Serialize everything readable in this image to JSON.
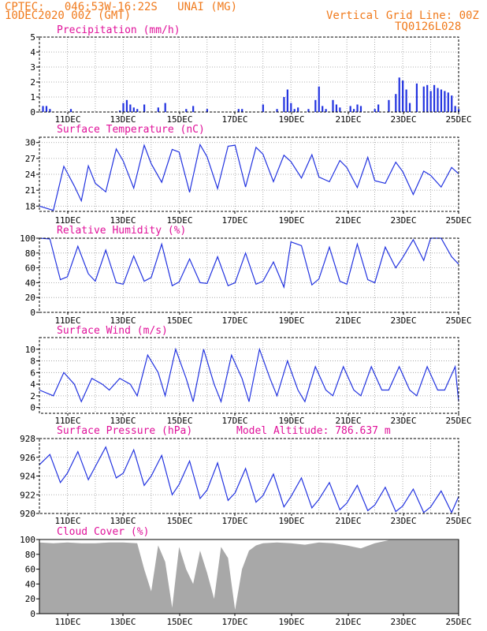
{
  "header": {
    "station_line": "CPTEC:   046:53W-16:22S   UNAI (MG)",
    "date_line": "10DEC2020 00Z (GMT)",
    "grid_note": "Vertical Grid Line: 00Z",
    "model_code": "TQ0126L028"
  },
  "colors": {
    "header": "#f07a1c",
    "title": "#e0119a",
    "series": "#2233e0",
    "cloud": "#a8a8a8",
    "grid": "#999999",
    "axis": "#000000"
  },
  "x_axis": {
    "start": "10DEC2020 00Z",
    "end": "25DEC2020 00Z",
    "tick_labels": [
      "11DEC",
      "13DEC",
      "15DEC",
      "17DEC",
      "19DEC",
      "21DEC",
      "23DEC",
      "25DEC"
    ]
  },
  "chart_data": [
    {
      "id": "precipitation",
      "type": "bar",
      "title": "Precipitation (mm/h)",
      "ylim": [
        0,
        5
      ],
      "yticks": [
        0,
        1,
        2,
        3,
        4,
        5
      ],
      "grid": true,
      "x": [
        "10DEC 03Z",
        "10DEC 06Z",
        "10DEC 09Z",
        "11DEC 03Z",
        "12DEC 21Z",
        "13DEC 00Z",
        "13DEC 03Z",
        "13DEC 06Z",
        "13DEC 09Z",
        "13DEC 12Z",
        "13DEC 18Z",
        "14DEC 06Z",
        "14DEC 12Z",
        "15DEC 06Z",
        "15DEC 12Z",
        "16DEC 00Z",
        "17DEC 03Z",
        "17DEC 06Z",
        "18DEC 00Z",
        "18DEC 12Z",
        "18DEC 18Z",
        "18DEC 21Z",
        "19DEC 00Z",
        "19DEC 03Z",
        "19DEC 06Z",
        "19DEC 15Z",
        "19DEC 21Z",
        "20DEC 00Z",
        "20DEC 03Z",
        "20DEC 06Z",
        "20DEC 12Z",
        "20DEC 15Z",
        "20DEC 18Z",
        "21DEC 03Z",
        "21DEC 06Z",
        "21DEC 09Z",
        "21DEC 12Z",
        "22DEC 00Z",
        "22DEC 03Z",
        "22DEC 12Z",
        "22DEC 18Z",
        "22DEC 21Z",
        "23DEC 00Z",
        "23DEC 03Z",
        "23DEC 06Z",
        "23DEC 12Z",
        "23DEC 18Z",
        "23DEC 21Z",
        "24DEC 00Z",
        "24DEC 03Z",
        "24DEC 06Z",
        "24DEC 09Z",
        "24DEC 12Z",
        "24DEC 15Z",
        "24DEC 18Z",
        "24DEC 21Z",
        "25DEC 00Z"
      ],
      "values": [
        0.4,
        0.4,
        0.2,
        0.2,
        0.1,
        0.6,
        0.8,
        0.5,
        0.3,
        0.2,
        0.5,
        0.3,
        0.6,
        0.2,
        0.4,
        0.2,
        0.2,
        0.2,
        0.5,
        0.2,
        1.0,
        1.5,
        0.6,
        0.2,
        0.3,
        0.2,
        0.8,
        1.7,
        0.4,
        0.2,
        0.8,
        0.5,
        0.3,
        0.4,
        0.2,
        0.5,
        0.4,
        0.2,
        0.5,
        0.8,
        1.2,
        2.3,
        2.1,
        1.5,
        0.6,
        1.9,
        1.7,
        1.8,
        1.4,
        1.8,
        1.6,
        1.5,
        1.4,
        1.3,
        1.1,
        0.4,
        0.2
      ]
    },
    {
      "id": "temperature",
      "type": "line",
      "title": "Surface Temperature (nC)",
      "ylim": [
        17,
        31
      ],
      "yticks": [
        18,
        21,
        24,
        27,
        30
      ],
      "grid": true,
      "x": [
        "10DEC 00Z",
        "10DEC 12Z",
        "10DEC 21Z",
        "11DEC 06Z",
        "11DEC 12Z",
        "11DEC 18Z",
        "12DEC 00Z",
        "12DEC 09Z",
        "12DEC 18Z",
        "13DEC 00Z",
        "13DEC 09Z",
        "13DEC 18Z",
        "14DEC 00Z",
        "14DEC 09Z",
        "14DEC 18Z",
        "15DEC 00Z",
        "15DEC 09Z",
        "15DEC 18Z",
        "16DEC 00Z",
        "16DEC 09Z",
        "16DEC 18Z",
        "17DEC 00Z",
        "17DEC 09Z",
        "17DEC 18Z",
        "18DEC 00Z",
        "18DEC 09Z",
        "18DEC 18Z",
        "19DEC 00Z",
        "19DEC 09Z",
        "19DEC 18Z",
        "20DEC 00Z",
        "20DEC 09Z",
        "20DEC 18Z",
        "21DEC 00Z",
        "21DEC 09Z",
        "21DEC 18Z",
        "22DEC 00Z",
        "22DEC 09Z",
        "22DEC 18Z",
        "23DEC 00Z",
        "23DEC 09Z",
        "23DEC 18Z",
        "24DEC 00Z",
        "24DEC 09Z",
        "24DEC 18Z",
        "25DEC 00Z"
      ],
      "values": [
        18,
        17.2,
        25.5,
        21.8,
        19,
        25.6,
        22.3,
        20.7,
        28.8,
        26.5,
        21.4,
        29.5,
        26,
        22.5,
        28.7,
        28.2,
        20.6,
        29.6,
        27.3,
        21.3,
        29.3,
        29.5,
        21.6,
        29.1,
        27.8,
        22.6,
        27.6,
        26.4,
        23.3,
        27.7,
        23.5,
        22.6,
        26.6,
        25.3,
        21.5,
        27.2,
        22.8,
        22.3,
        26.3,
        24.5,
        20.2,
        24.6,
        23.8,
        21.6,
        25.3,
        24.1
      ]
    },
    {
      "id": "humidity",
      "type": "line",
      "title": "Relative Humidity (%)",
      "ylim": [
        0,
        100
      ],
      "yticks": [
        0,
        20,
        40,
        60,
        80,
        100
      ],
      "grid": true,
      "x": [
        "10DEC 00Z",
        "10DEC 09Z",
        "10DEC 18Z",
        "11DEC 00Z",
        "11DEC 09Z",
        "11DEC 18Z",
        "12DEC 00Z",
        "12DEC 09Z",
        "12DEC 18Z",
        "13DEC 00Z",
        "13DEC 09Z",
        "13DEC 18Z",
        "14DEC 00Z",
        "14DEC 09Z",
        "14DEC 18Z",
        "15DEC 00Z",
        "15DEC 09Z",
        "15DEC 18Z",
        "16DEC 00Z",
        "16DEC 09Z",
        "16DEC 18Z",
        "17DEC 00Z",
        "17DEC 09Z",
        "17DEC 18Z",
        "18DEC 00Z",
        "18DEC 09Z",
        "18DEC 18Z",
        "19DEC 00Z",
        "19DEC 09Z",
        "19DEC 18Z",
        "20DEC 00Z",
        "20DEC 09Z",
        "20DEC 18Z",
        "21DEC 00Z",
        "21DEC 09Z",
        "21DEC 18Z",
        "22DEC 00Z",
        "22DEC 09Z",
        "22DEC 18Z",
        "23DEC 00Z",
        "23DEC 09Z",
        "23DEC 18Z",
        "24DEC 00Z",
        "24DEC 09Z",
        "24DEC 18Z",
        "25DEC 00Z"
      ],
      "values": [
        100,
        99,
        44,
        48,
        89,
        52,
        42,
        84,
        40,
        38,
        76,
        42,
        47,
        92,
        36,
        41,
        72,
        40,
        39,
        75,
        36,
        40,
        80,
        38,
        42,
        68,
        34,
        95,
        90,
        37,
        45,
        88,
        42,
        38,
        92,
        44,
        40,
        88,
        60,
        74,
        98,
        70,
        100,
        100,
        75,
        65
      ]
    },
    {
      "id": "wind",
      "type": "line",
      "title": "Surface Wind (m/s)",
      "ylim": [
        -1,
        12
      ],
      "yticks": [
        0,
        2,
        4,
        6,
        8,
        10
      ],
      "grid": true,
      "x": [
        "10DEC 00Z",
        "10DEC 12Z",
        "10DEC 21Z",
        "11DEC 06Z",
        "11DEC 12Z",
        "11DEC 21Z",
        "12DEC 06Z",
        "12DEC 12Z",
        "12DEC 21Z",
        "13DEC 06Z",
        "13DEC 12Z",
        "13DEC 21Z",
        "14DEC 06Z",
        "14DEC 12Z",
        "14DEC 21Z",
        "15DEC 06Z",
        "15DEC 12Z",
        "15DEC 21Z",
        "16DEC 06Z",
        "16DEC 12Z",
        "16DEC 21Z",
        "17DEC 06Z",
        "17DEC 12Z",
        "17DEC 21Z",
        "18DEC 06Z",
        "18DEC 12Z",
        "18DEC 21Z",
        "19DEC 06Z",
        "19DEC 12Z",
        "19DEC 21Z",
        "20DEC 06Z",
        "20DEC 12Z",
        "20DEC 21Z",
        "21DEC 06Z",
        "21DEC 12Z",
        "21DEC 21Z",
        "22DEC 06Z",
        "22DEC 12Z",
        "22DEC 21Z",
        "23DEC 06Z",
        "23DEC 12Z",
        "23DEC 21Z",
        "24DEC 06Z",
        "24DEC 12Z",
        "24DEC 21Z",
        "25DEC 00Z"
      ],
      "values": [
        3,
        2,
        6,
        4,
        1,
        5,
        4,
        3,
        5,
        4,
        2,
        9,
        6,
        2,
        10,
        5,
        1,
        10,
        4,
        1,
        9,
        5,
        1,
        10,
        5,
        2,
        8,
        3,
        1,
        7,
        3,
        2,
        7,
        3,
        2,
        7,
        3,
        3,
        7,
        3,
        2,
        7,
        3,
        3,
        7,
        1
      ]
    },
    {
      "id": "pressure",
      "type": "line",
      "title": "Surface Pressure (hPa)",
      "annotation": "Model Altitude: 786.637 m",
      "ylim": [
        920,
        928
      ],
      "yticks": [
        920,
        922,
        924,
        926,
        928
      ],
      "grid": true,
      "x": [
        "10DEC 00Z",
        "10DEC 09Z",
        "10DEC 18Z",
        "11DEC 00Z",
        "11DEC 09Z",
        "11DEC 18Z",
        "12DEC 00Z",
        "12DEC 09Z",
        "12DEC 18Z",
        "13DEC 00Z",
        "13DEC 09Z",
        "13DEC 18Z",
        "14DEC 00Z",
        "14DEC 09Z",
        "14DEC 18Z",
        "15DEC 00Z",
        "15DEC 09Z",
        "15DEC 18Z",
        "16DEC 00Z",
        "16DEC 09Z",
        "16DEC 18Z",
        "17DEC 00Z",
        "17DEC 09Z",
        "17DEC 18Z",
        "18DEC 00Z",
        "18DEC 09Z",
        "18DEC 18Z",
        "19DEC 00Z",
        "19DEC 09Z",
        "19DEC 18Z",
        "20DEC 00Z",
        "20DEC 09Z",
        "20DEC 18Z",
        "21DEC 00Z",
        "21DEC 09Z",
        "21DEC 18Z",
        "22DEC 00Z",
        "22DEC 09Z",
        "22DEC 18Z",
        "23DEC 00Z",
        "23DEC 09Z",
        "23DEC 18Z",
        "24DEC 00Z",
        "24DEC 09Z",
        "24DEC 18Z",
        "25DEC 00Z"
      ],
      "values": [
        925.2,
        926.3,
        923.3,
        924.3,
        926.6,
        923.6,
        925,
        927.1,
        923.8,
        924.3,
        926.8,
        923,
        924,
        926.2,
        922,
        923.1,
        925.6,
        921.6,
        922.5,
        925.4,
        921.4,
        922.2,
        924.8,
        921.2,
        921.9,
        924.2,
        920.7,
        921.8,
        923.8,
        920.6,
        921.5,
        923.3,
        920.4,
        921.1,
        923,
        920.3,
        920.9,
        922.8,
        920.2,
        920.8,
        922.6,
        920.1,
        920.7,
        922.4,
        920.1,
        921.8
      ]
    },
    {
      "id": "cloud_cover",
      "type": "area",
      "title": "Cloud Cover (%)",
      "ylim": [
        0,
        100
      ],
      "yticks": [
        0,
        20,
        40,
        60,
        80,
        100
      ],
      "grid": false,
      "x": [
        "10DEC 00Z",
        "10DEC 12Z",
        "11DEC 00Z",
        "11DEC 12Z",
        "12DEC 00Z",
        "12DEC 12Z",
        "13DEC 00Z",
        "13DEC 12Z",
        "13DEC 18Z",
        "14DEC 00Z",
        "14DEC 06Z",
        "14DEC 12Z",
        "14DEC 18Z",
        "15DEC 00Z",
        "15DEC 06Z",
        "15DEC 12Z",
        "15DEC 18Z",
        "16DEC 00Z",
        "16DEC 06Z",
        "16DEC 12Z",
        "16DEC 18Z",
        "17DEC 00Z",
        "17DEC 06Z",
        "17DEC 12Z",
        "17DEC 18Z",
        "18DEC 00Z",
        "18DEC 12Z",
        "19DEC 00Z",
        "19DEC 12Z",
        "20DEC 00Z",
        "20DEC 12Z",
        "21DEC 00Z",
        "21DEC 12Z",
        "22DEC 00Z",
        "22DEC 12Z",
        "23DEC 00Z",
        "23DEC 12Z",
        "24DEC 00Z",
        "24DEC 12Z",
        "25DEC 00Z"
      ],
      "values": [
        96,
        95,
        96,
        95,
        95,
        96,
        96,
        95,
        60,
        30,
        92,
        70,
        8,
        90,
        60,
        40,
        85,
        55,
        20,
        90,
        75,
        5,
        60,
        85,
        92,
        95,
        96,
        95,
        93,
        96,
        95,
        92,
        88,
        95,
        99,
        99,
        99,
        99,
        99,
        99
      ]
    }
  ]
}
